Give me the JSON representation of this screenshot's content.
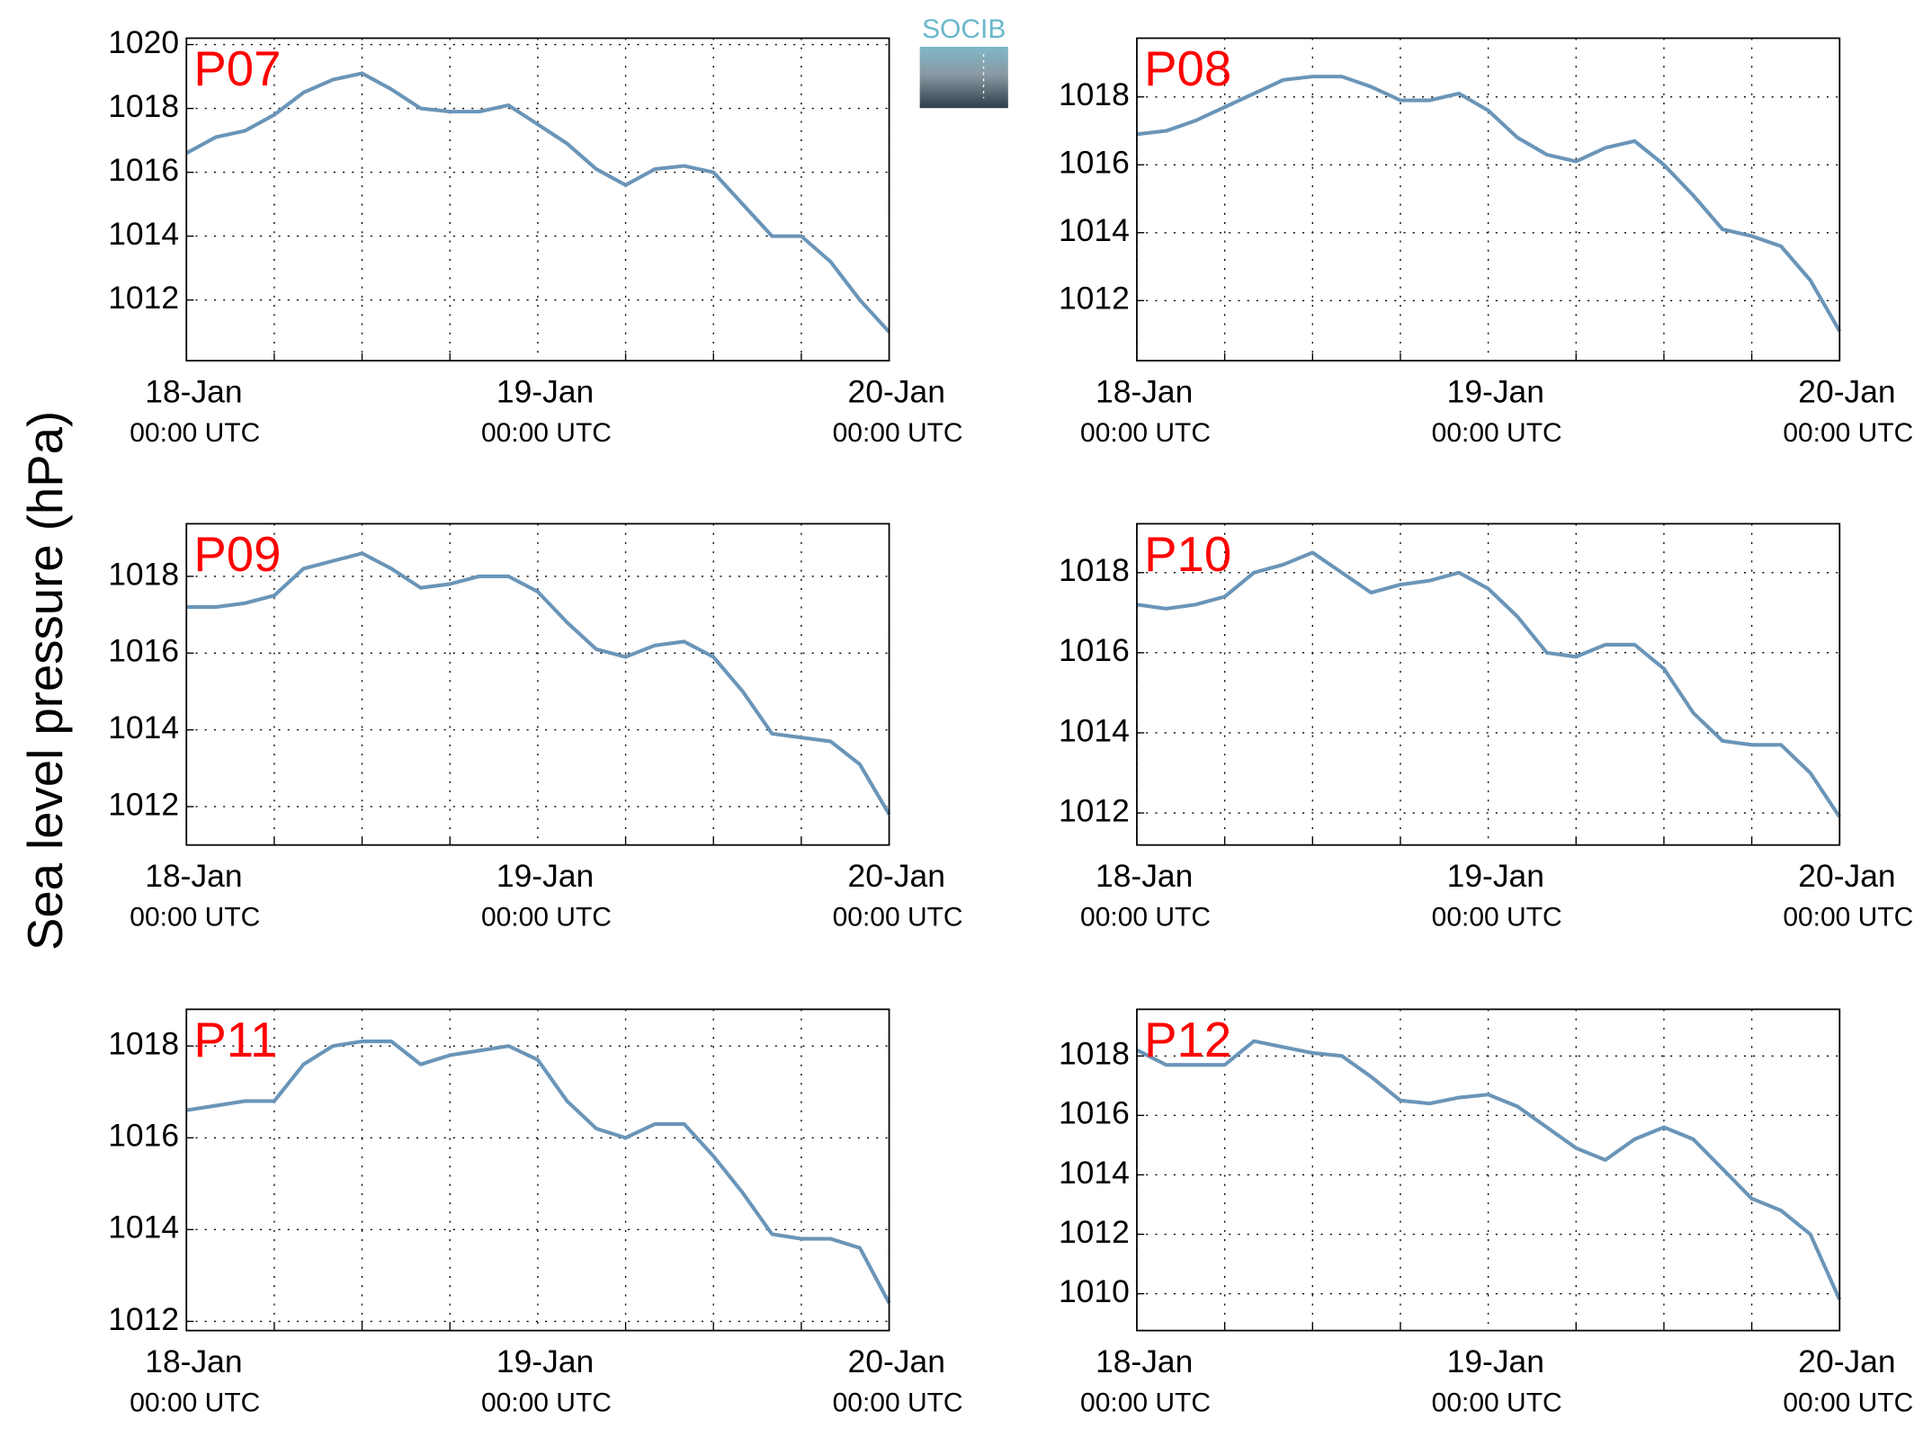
{
  "ylabel": "Sea level pressure (hPa)",
  "logo": "SOCIB",
  "chart_data": [
    {
      "type": "line",
      "title": "P07",
      "x": [
        0,
        2,
        4,
        6,
        8,
        10,
        12,
        14,
        16,
        18,
        20,
        22,
        24,
        26,
        28,
        30,
        32,
        34,
        36,
        38,
        40,
        42,
        44,
        46,
        48
      ],
      "series": [
        {
          "color": "#6a95b8",
          "values": [
            1016.6,
            1017.1,
            1017.3,
            1017.8,
            1018.5,
            1018.9,
            1019.1,
            1018.6,
            1018.0,
            1017.9,
            1017.9,
            1018.1,
            1017.5,
            1016.9,
            1016.1,
            1015.6,
            1016.1,
            1016.2,
            1016.0,
            1015.0,
            1014.0,
            1014.0,
            1013.2,
            1012.0,
            1011.0
          ]
        }
      ],
      "xlim": [
        0,
        48
      ],
      "xticks": [
        {
          "value": 0,
          "label": [
            "18-Jan",
            "00:00 UTC"
          ]
        },
        {
          "value": 24,
          "label": [
            "19-Jan",
            "00:00 UTC"
          ]
        },
        {
          "value": 48,
          "label": [
            "20-Jan",
            "00:00 UTC"
          ]
        }
      ],
      "xminor": [
        6,
        12,
        18,
        30,
        36,
        42
      ],
      "ylim": [
        1010.1,
        1020.2
      ],
      "yticks": [
        1012,
        1014,
        1016,
        1018,
        1020
      ],
      "grid": true
    },
    {
      "type": "line",
      "title": "P08",
      "x": [
        0,
        2,
        4,
        6,
        8,
        10,
        12,
        14,
        16,
        18,
        20,
        22,
        24,
        26,
        28,
        30,
        32,
        34,
        36,
        38,
        40,
        42,
        44,
        46,
        48
      ],
      "series": [
        {
          "color": "#6a95b8",
          "values": [
            1016.9,
            1017.0,
            1017.3,
            1017.7,
            1018.1,
            1018.5,
            1018.6,
            1018.6,
            1018.3,
            1017.9,
            1017.9,
            1018.1,
            1017.6,
            1016.8,
            1016.3,
            1016.1,
            1016.5,
            1016.7,
            1016.0,
            1015.1,
            1014.1,
            1013.9,
            1013.6,
            1012.6,
            1011.1
          ]
        }
      ],
      "xlim": [
        0,
        48
      ],
      "xticks": [
        {
          "value": 0,
          "label": [
            "18-Jan",
            "00:00 UTC"
          ]
        },
        {
          "value": 24,
          "label": [
            "19-Jan",
            "00:00 UTC"
          ]
        },
        {
          "value": 48,
          "label": [
            "20-Jan",
            "00:00 UTC"
          ]
        }
      ],
      "xminor": [
        6,
        12,
        18,
        30,
        36,
        42
      ],
      "ylim": [
        1010.23,
        1019.73
      ],
      "yticks": [
        1012,
        1014,
        1016,
        1018
      ],
      "grid": true
    },
    {
      "type": "line",
      "title": "P09",
      "x": [
        0,
        2,
        4,
        6,
        8,
        10,
        12,
        14,
        16,
        18,
        20,
        22,
        24,
        26,
        28,
        30,
        32,
        34,
        36,
        38,
        40,
        42,
        44,
        46,
        48
      ],
      "series": [
        {
          "color": "#6a95b8",
          "values": [
            1017.2,
            1017.2,
            1017.3,
            1017.5,
            1018.2,
            1018.4,
            1018.6,
            1018.2,
            1017.7,
            1017.8,
            1018.0,
            1018.0,
            1017.6,
            1016.8,
            1016.1,
            1015.9,
            1016.2,
            1016.3,
            1015.9,
            1015.0,
            1013.9,
            1013.8,
            1013.7,
            1013.1,
            1011.8
          ]
        }
      ],
      "xlim": [
        0,
        48
      ],
      "xticks": [
        {
          "value": 0,
          "label": [
            "18-Jan",
            "00:00 UTC"
          ]
        },
        {
          "value": 24,
          "label": [
            "19-Jan",
            "00:00 UTC"
          ]
        },
        {
          "value": 48,
          "label": [
            "20-Jan",
            "00:00 UTC"
          ]
        }
      ],
      "xminor": [
        6,
        12,
        18,
        30,
        36,
        42
      ],
      "ylim": [
        1011.0,
        1019.37
      ],
      "yticks": [
        1012,
        1014,
        1016,
        1018
      ],
      "grid": true
    },
    {
      "type": "line",
      "title": "P10",
      "x": [
        0,
        2,
        4,
        6,
        8,
        10,
        12,
        14,
        16,
        18,
        20,
        22,
        24,
        26,
        28,
        30,
        32,
        34,
        36,
        38,
        40,
        42,
        44,
        46,
        48
      ],
      "series": [
        {
          "color": "#6a95b8",
          "values": [
            1017.2,
            1017.1,
            1017.2,
            1017.4,
            1018.0,
            1018.2,
            1018.5,
            1018.0,
            1017.5,
            1017.7,
            1017.8,
            1018.0,
            1017.6,
            1016.9,
            1016.0,
            1015.9,
            1016.2,
            1016.2,
            1015.6,
            1014.5,
            1013.8,
            1013.7,
            1013.7,
            1013.0,
            1011.9
          ]
        }
      ],
      "xlim": [
        0,
        48
      ],
      "xticks": [
        {
          "value": 0,
          "label": [
            "18-Jan",
            "00:00 UTC"
          ]
        },
        {
          "value": 24,
          "label": [
            "19-Jan",
            "00:00 UTC"
          ]
        },
        {
          "value": 48,
          "label": [
            "20-Jan",
            "00:00 UTC"
          ]
        }
      ],
      "xminor": [
        6,
        12,
        18,
        30,
        36,
        42
      ],
      "ylim": [
        1011.2,
        1019.22
      ],
      "yticks": [
        1012,
        1014,
        1016,
        1018
      ],
      "grid": true
    },
    {
      "type": "line",
      "title": "P11",
      "x": [
        0,
        2,
        4,
        6,
        8,
        10,
        12,
        14,
        16,
        18,
        20,
        22,
        24,
        26,
        28,
        30,
        32,
        34,
        36,
        38,
        40,
        42,
        44,
        46,
        48
      ],
      "series": [
        {
          "color": "#6a95b8",
          "values": [
            1016.6,
            1016.7,
            1016.8,
            1016.8,
            1017.6,
            1018.0,
            1018.1,
            1018.1,
            1017.6,
            1017.8,
            1017.9,
            1018.0,
            1017.7,
            1016.8,
            1016.2,
            1016.0,
            1016.3,
            1016.3,
            1015.6,
            1014.8,
            1013.9,
            1013.8,
            1013.8,
            1013.6,
            1012.4
          ]
        }
      ],
      "xlim": [
        0,
        48
      ],
      "xticks": [
        {
          "value": 0,
          "label": [
            "18-Jan",
            "00:00 UTC"
          ]
        },
        {
          "value": 24,
          "label": [
            "19-Jan",
            "00:00 UTC"
          ]
        },
        {
          "value": 48,
          "label": [
            "20-Jan",
            "00:00 UTC"
          ]
        }
      ],
      "xminor": [
        6,
        12,
        18,
        30,
        36,
        42
      ],
      "ylim": [
        1011.8,
        1018.8
      ],
      "yticks": [
        1012,
        1014,
        1016,
        1018
      ],
      "grid": true
    },
    {
      "type": "line",
      "title": "P12",
      "x": [
        0,
        2,
        4,
        6,
        8,
        10,
        12,
        14,
        16,
        18,
        20,
        22,
        24,
        26,
        28,
        30,
        32,
        34,
        36,
        38,
        40,
        42,
        44,
        46,
        48
      ],
      "series": [
        {
          "color": "#6a95b8",
          "values": [
            1018.2,
            1017.7,
            1017.7,
            1017.7,
            1018.5,
            1018.3,
            1018.1,
            1018.0,
            1017.3,
            1016.5,
            1016.4,
            1016.6,
            1016.7,
            1016.3,
            1015.6,
            1014.9,
            1014.5,
            1015.2,
            1015.6,
            1015.2,
            1014.2,
            1013.2,
            1012.8,
            1012.0,
            1009.8
          ]
        }
      ],
      "xlim": [
        0,
        48
      ],
      "xticks": [
        {
          "value": 0,
          "label": [
            "18-Jan",
            "00:00 UTC"
          ]
        },
        {
          "value": 24,
          "label": [
            "19-Jan",
            "00:00 UTC"
          ]
        },
        {
          "value": 48,
          "label": [
            "20-Jan",
            "00:00 UTC"
          ]
        }
      ],
      "xminor": [
        6,
        12,
        18,
        30,
        36,
        42
      ],
      "ylim": [
        1008.76,
        1019.57
      ],
      "yticks": [
        1010,
        1012,
        1014,
        1016,
        1018
      ],
      "grid": true
    }
  ]
}
